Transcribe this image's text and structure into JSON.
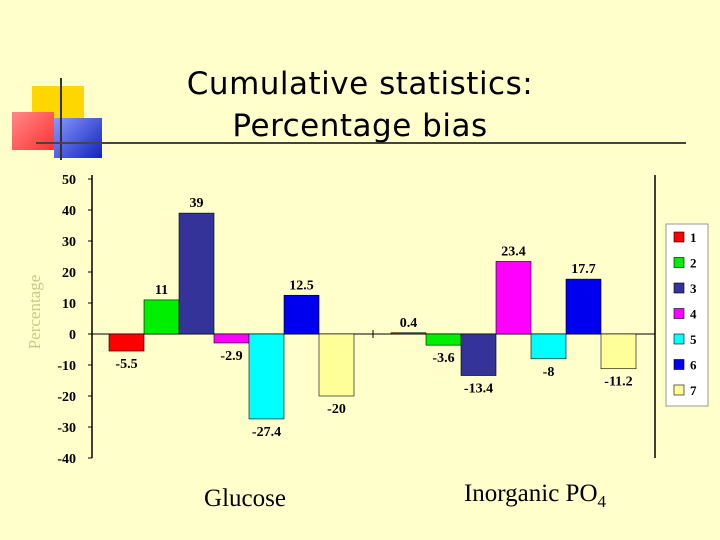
{
  "slide": {
    "title_line1": "Cumulative statistics:",
    "title_line2": "Percentage bias"
  },
  "colors": {
    "background": "#ffffcc",
    "deco_yellow": "#ffd700",
    "deco_red": "#ff6666",
    "deco_blue": "#2233cc"
  },
  "chart_data": {
    "type": "bar",
    "title": "",
    "xlabel": "",
    "ylabel": "Percentage",
    "ylim": [
      -40,
      50
    ],
    "yticks": [
      50,
      40,
      30,
      20,
      10,
      0,
      -10,
      -20,
      -30,
      -40
    ],
    "grid": false,
    "legend_position": "right",
    "categories": [
      "Glucose",
      "Inorganic PO4"
    ],
    "series": [
      {
        "name": "1",
        "color": "#ff0000",
        "values": [
          -5.5,
          0.4
        ]
      },
      {
        "name": "2",
        "color": "#00ee00",
        "values": [
          11,
          -3.6
        ]
      },
      {
        "name": "3",
        "color": "#333399",
        "values": [
          39,
          -13.4
        ]
      },
      {
        "name": "4",
        "color": "#ff00ff",
        "values": [
          -2.9,
          23.4
        ]
      },
      {
        "name": "5",
        "color": "#00ffff",
        "values": [
          -27.4,
          -8
        ]
      },
      {
        "name": "6",
        "color": "#0000ee",
        "values": [
          12.5,
          17.7
        ]
      },
      {
        "name": "7",
        "color": "#ffff99",
        "values": [
          -20,
          -11.2
        ]
      }
    ],
    "data_labels": [
      [
        "-5.5",
        "11",
        "39",
        "-2.9",
        "-27.4",
        "12.5",
        "-20"
      ],
      [
        "0.4",
        "-3.6",
        "-13.4",
        "23.4",
        "-8",
        "17.7",
        "-11.2"
      ]
    ]
  }
}
